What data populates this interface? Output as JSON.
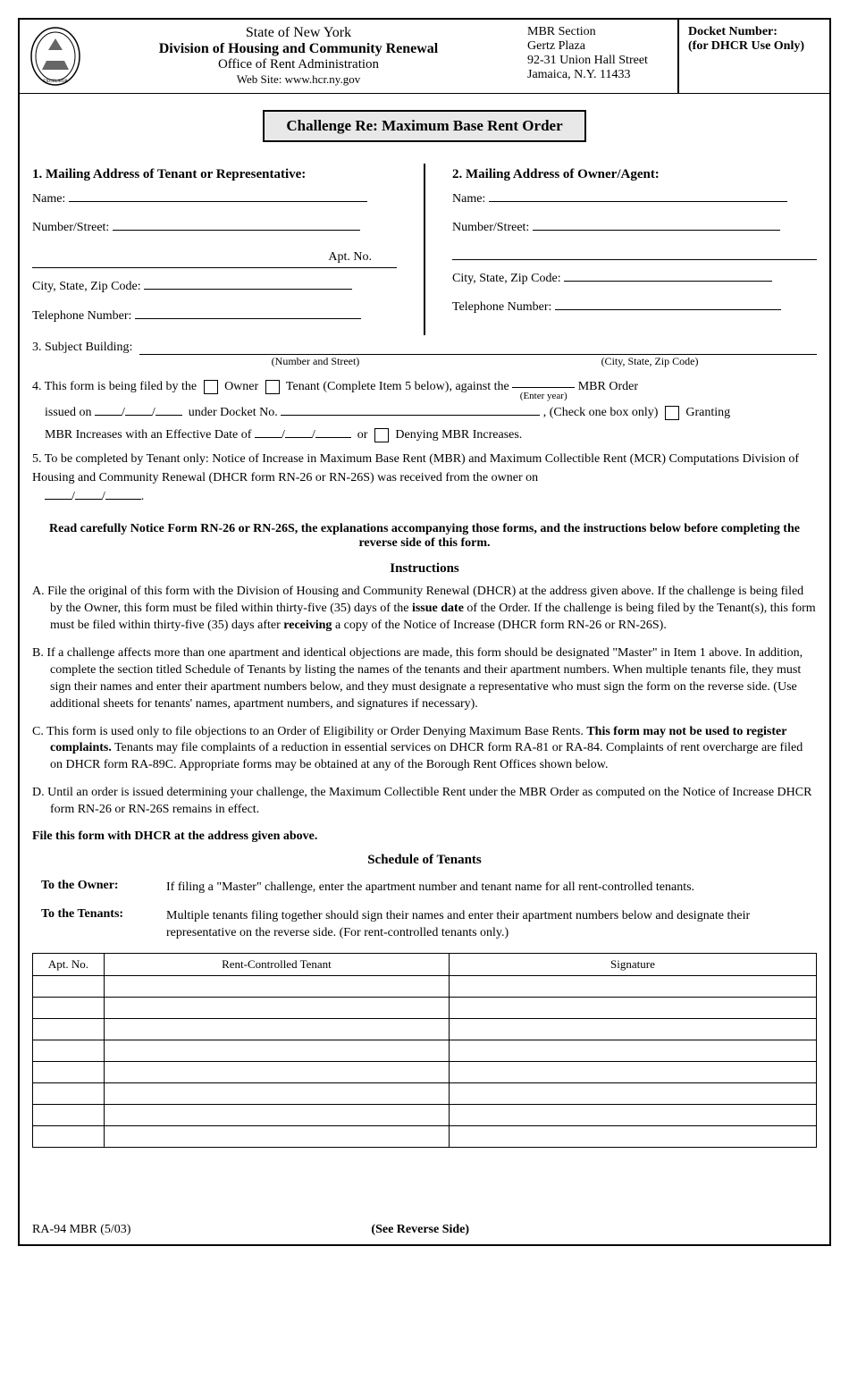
{
  "header": {
    "state": "State of New York",
    "division": "Division of Housing and Community Renewal",
    "office": "Office of Rent Administration",
    "website": "Web Site: www.hcr.ny.gov",
    "section": "MBR Section",
    "building": "Gertz Plaza",
    "street": "92-31 Union Hall Street",
    "city": "Jamaica, N.Y.  11433",
    "docket_label": "Docket Number:",
    "docket_sub": "(for DHCR Use Only)"
  },
  "title": "Challenge Re:  Maximum Base Rent Order",
  "section1": {
    "head": "1.  Mailing Address of Tenant or Representative:",
    "name": "Name:",
    "numstreet": "Number/Street:",
    "apt": "Apt. No.",
    "csz": "City, State, Zip Code:",
    "tel": "Telephone Number:"
  },
  "section2": {
    "head": "2.  Mailing Address of Owner/Agent:",
    "name": "Name:",
    "numstreet": "Number/Street:",
    "csz": "City, State, Zip Code:",
    "tel": "Telephone Number:"
  },
  "section3": {
    "label": "3.  Subject Building:",
    "sub1": "(Number and Street)",
    "sub2": "(City, State, Zip Code)"
  },
  "section4": {
    "lead": "4.  This form is being filed by the",
    "owner": "Owner",
    "tenant": "Tenant (Complete Item 5 below), against the",
    "enter_year": "(Enter year)",
    "mbr_order": "MBR Order",
    "issued": "issued on",
    "under_docket": "under Docket No.",
    "check_one": ", (Check one box only)",
    "granting": "Granting",
    "mbr_inc": "MBR Increases with an Effective Date of",
    "or": "or",
    "denying": "Denying MBR Increases."
  },
  "section5": {
    "text1": "5.  To be completed by Tenant only:  Notice of Increase in Maximum Base Rent (MBR) and Maximum Collectible Rent (MCR) Computations Division of  Housing and Community Renewal (DHCR form RN-26 or RN-26S) was received from the owner on"
  },
  "notice": "Read carefully Notice Form RN-26 or RN-26S, the explanations accompanying those forms, and the instructions below before completing the reverse side of this form.",
  "instructions_head": "Instructions",
  "instructions": {
    "a_pre": "A. File the original of this form with the Division of Housing and Community Renewal (DHCR) at the address given above.  If the challenge is being filed by the Owner, this form must be filed within thirty-five (35) days of the ",
    "a_bold1": "issue date",
    "a_mid": " of the Order.  If the challenge is being filed by the Tenant(s), this form must be filed within thirty-five (35) days after ",
    "a_bold2": "receiving",
    "a_post": " a copy of the Notice of Increase (DHCR form RN-26 or RN-26S).",
    "b": "B. If a challenge affects more than one apartment and identical objections are made, this form should be designated \"Master\" in Item 1 above.  In addition, complete the section titled Schedule of Tenants by listing the names of the tenants and their apartment numbers.  When multiple tenants file, they must sign their names and enter their apartment numbers below, and they must designate a representative who must sign the form on the reverse side.  (Use additional sheets for tenants' names, apartment numbers, and signatures if necessary).",
    "c_pre": "C. This form is used only to file objections to an Order of Eligibility or Order Denying Maximum Base Rents.  ",
    "c_bold": "This form may not be used to register complaints.",
    "c_post": "  Tenants may file complaints of a reduction in essential services on DHCR form RA-81 or RA-84.  Complaints of rent overcharge are filed on DHCR form RA-89C.  Appropriate forms may be obtained at any of the Borough Rent Offices shown below.",
    "d": "D. Until an order is issued determining your challenge, the Maximum Collectible Rent under the MBR Order as computed on the Notice of Increase DHCR form RN-26 or RN-26S remains in effect."
  },
  "file_with": "File this form with DHCR at the address given above.",
  "schedule_head": "Schedule of Tenants",
  "to_owner": {
    "label": "To the Owner:",
    "text": "If filing a \"Master\" challenge, enter the apartment number and tenant name for all rent-controlled tenants."
  },
  "to_tenants": {
    "label": "To the Tenants:",
    "text": "Multiple tenants filing together should sign their names and enter their apartment numbers below and designate their representative on the reverse side.  (For rent-controlled tenants only.)"
  },
  "table": {
    "col1": "Apt. No.",
    "col2": "Rent-Controlled Tenant",
    "col3": "Signature",
    "row_count": 8
  },
  "footer": {
    "left": "RA-94 MBR (5/03)",
    "center": "(See Reverse Side)"
  }
}
